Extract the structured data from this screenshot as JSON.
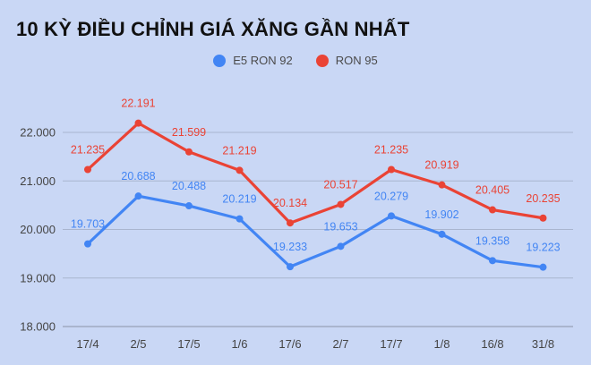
{
  "chart_data": {
    "type": "line",
    "title": "10 KỲ ĐIỀU CHỈNH GIÁ XĂNG GẦN NHẤT",
    "categories": [
      "17/4",
      "2/5",
      "17/5",
      "1/6",
      "17/6",
      "2/7",
      "17/7",
      "1/8",
      "16/8",
      "31/8"
    ],
    "y_tick_labels": [
      "18.000",
      "19.000",
      "20.000",
      "21.000",
      "22.000"
    ],
    "y_tick_values": [
      18000,
      19000,
      20000,
      21000,
      22000
    ],
    "ylim": [
      18000,
      22000
    ],
    "grid": true,
    "legend_position": "top",
    "series": [
      {
        "name": "E5 RON 92",
        "color": "#4285f4",
        "values": [
          19703,
          20688,
          20488,
          20219,
          19233,
          19653,
          20279,
          19902,
          19358,
          19223
        ],
        "labels": [
          "19.703",
          "20.688",
          "20.488",
          "20.219",
          "19.233",
          "19.653",
          "20.279",
          "19.902",
          "19.358",
          "19.223"
        ]
      },
      {
        "name": "RON 95",
        "color": "#ea4335",
        "values": [
          21235,
          22191,
          21599,
          21219,
          20134,
          20517,
          21235,
          20919,
          20405,
          20235
        ],
        "labels": [
          "21.235",
          "22.191",
          "21.599",
          "21.219",
          "20.134",
          "20.517",
          "21.235",
          "20.919",
          "20.405",
          "20.235"
        ]
      }
    ]
  }
}
